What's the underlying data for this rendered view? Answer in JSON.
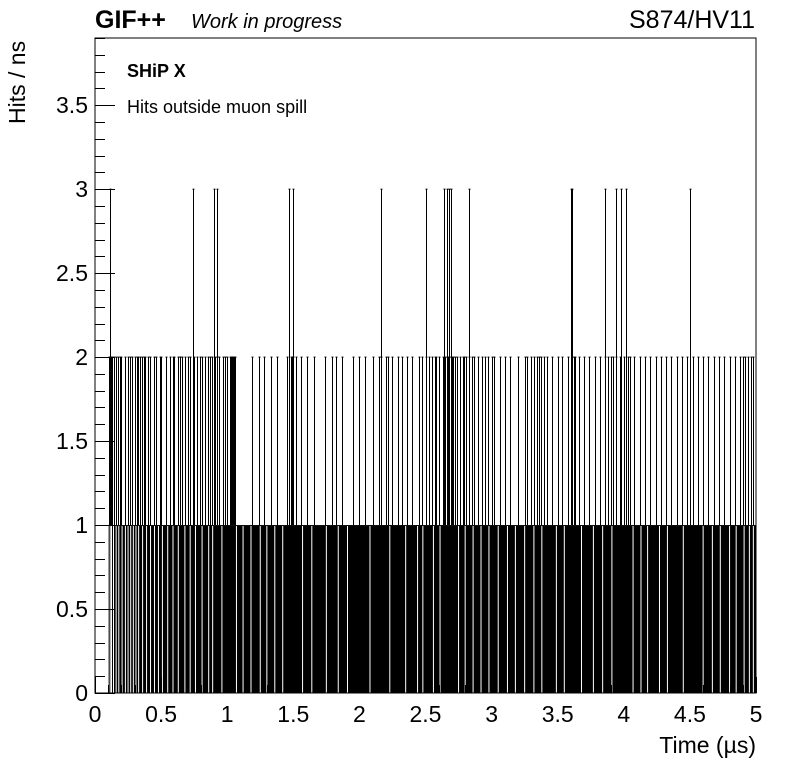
{
  "header": {
    "brand": "GIF++",
    "status": "Work in progress",
    "run_label": "S874/HV11"
  },
  "annotations": {
    "experiment": "SHiP X",
    "description": "Hits outside muon spill"
  },
  "chart_data": {
    "type": "bar",
    "xlabel": "Time (µs)",
    "ylabel": "Hits / ns",
    "xlim": [
      0,
      5
    ],
    "ylim": [
      0,
      3.9
    ],
    "xticks": [
      "0",
      "0.5",
      "1",
      "1.5",
      "2",
      "2.5",
      "3",
      "3.5",
      "4",
      "4.5",
      "5"
    ],
    "yticks": [
      "0",
      "0.5",
      "1",
      "1.5",
      "2",
      "2.5",
      "3",
      "3.5"
    ],
    "bin_width": 0.001,
    "baseline_hits": 1,
    "baseline_start": 0.103,
    "zero_bins": [
      0.115,
      0.125,
      0.14,
      0.16,
      0.18,
      0.205,
      0.23,
      0.25,
      0.27,
      0.29,
      0.31,
      0.33,
      0.36,
      0.39,
      0.42,
      0.45,
      0.48,
      0.51,
      0.55,
      0.59,
      0.63,
      0.68,
      0.72,
      0.76,
      0.81,
      0.86,
      0.89,
      0.96,
      1.07,
      1.12,
      1.18,
      1.25,
      1.3,
      1.36,
      1.42,
      1.57,
      1.64,
      1.75,
      1.84,
      1.91,
      2.08,
      2.23,
      2.35,
      2.44,
      2.48,
      2.56,
      2.61,
      2.75,
      2.8,
      2.86,
      2.92,
      2.98,
      3.05,
      3.12,
      3.18,
      3.25,
      3.32,
      3.38,
      3.49,
      3.55,
      3.68,
      3.77,
      3.84,
      3.91,
      4.07,
      4.13,
      4.18,
      4.27,
      4.33,
      4.45,
      4.6,
      4.67,
      4.73,
      4.8,
      4.85,
      4.91,
      4.95,
      4.98
    ],
    "bins_2_hits": [
      0.104,
      0.112,
      0.122,
      0.131,
      0.146,
      0.158,
      0.172,
      0.188,
      0.198,
      0.224,
      0.248,
      0.262,
      0.277,
      0.3,
      0.319,
      0.327,
      0.344,
      0.357,
      0.368,
      0.38,
      0.4,
      0.416,
      0.447,
      0.461,
      0.488,
      0.501,
      0.538,
      0.57,
      0.588,
      0.6,
      0.625,
      0.64,
      0.645,
      0.66,
      0.684,
      0.701,
      0.72,
      0.75,
      0.768,
      0.791,
      0.81,
      0.835,
      0.856,
      0.872,
      0.888,
      0.905,
      0.92,
      0.94,
      0.965,
      0.98,
      1.0,
      1.02,
      1.025,
      1.03,
      1.035,
      1.04,
      1.045,
      1.05,
      1.06,
      1.185,
      1.24,
      1.28,
      1.33,
      1.38,
      1.45,
      1.48,
      1.49,
      1.495,
      1.5,
      1.52,
      1.56,
      1.6,
      1.66,
      1.74,
      1.79,
      1.82,
      1.87,
      1.95,
      2.0,
      2.04,
      2.1,
      2.15,
      2.16,
      2.2,
      2.22,
      2.25,
      2.29,
      2.32,
      2.36,
      2.4,
      2.45,
      2.47,
      2.5,
      2.53,
      2.55,
      2.57,
      2.58,
      2.6,
      2.63,
      2.65,
      2.66,
      2.67,
      2.68,
      2.69,
      2.7,
      2.71,
      2.72,
      2.74,
      2.76,
      2.78,
      2.79,
      2.81,
      2.83,
      2.85,
      2.87,
      2.9,
      2.93,
      2.95,
      2.97,
      3.0,
      3.02,
      3.06,
      3.1,
      3.14,
      3.2,
      3.25,
      3.27,
      3.3,
      3.32,
      3.34,
      3.36,
      3.37,
      3.4,
      3.42,
      3.46,
      3.5,
      3.53,
      3.58,
      3.61,
      3.62,
      3.63,
      3.66,
      3.7,
      3.74,
      3.78,
      3.82,
      3.86,
      3.88,
      3.9,
      3.92,
      3.94,
      3.97,
      4.0,
      4.03,
      4.05,
      4.08,
      4.12,
      4.16,
      4.2,
      4.24,
      4.28,
      4.32,
      4.36,
      4.4,
      4.44,
      4.48,
      4.52,
      4.56,
      4.6,
      4.64,
      4.68,
      4.72,
      4.76,
      4.8,
      4.84,
      4.88,
      4.9,
      4.92,
      4.94,
      4.96,
      4.98
    ],
    "bins_3_hits": [
      0.11,
      0.74,
      0.9,
      0.92,
      1.47,
      1.5,
      2.16,
      2.5,
      2.64,
      2.66,
      2.68,
      2.69,
      2.83,
      3.6,
      3.61,
      3.86,
      3.94,
      3.98,
      4.02,
      4.5
    ]
  }
}
